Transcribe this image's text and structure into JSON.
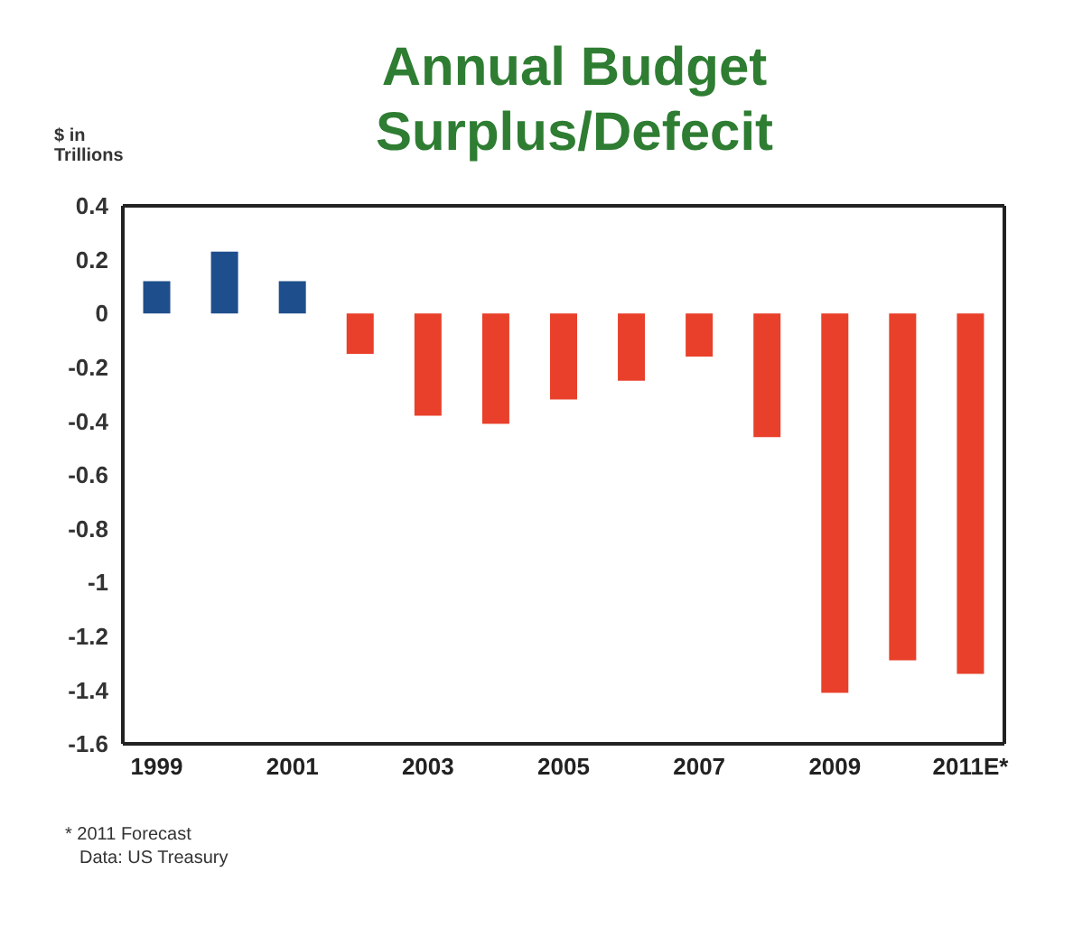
{
  "chart_data": {
    "type": "bar",
    "title": "Annual Budget Surplus/Defecit",
    "ylabel": "$ in Trillions",
    "categories": [
      "1999",
      null,
      "2001",
      null,
      "2003",
      null,
      "2005",
      null,
      "2007",
      null,
      "2009",
      null,
      "2011E*"
    ],
    "values": [
      0.12,
      0.23,
      0.12,
      -0.15,
      -0.38,
      -0.41,
      -0.32,
      -0.25,
      -0.16,
      -0.46,
      -1.41,
      -1.29,
      -1.34
    ],
    "colors": [
      "#1f4e8c",
      "#1f4e8c",
      "#1f4e8c",
      "#e8402a",
      "#e8402a",
      "#e8402a",
      "#e8402a",
      "#e8402a",
      "#e8402a",
      "#e8402a",
      "#e8402a",
      "#e8402a",
      "#e8402a"
    ],
    "ylim": [
      -1.6,
      0.4
    ],
    "yticks": [
      0.4,
      0.2,
      0,
      -0.2,
      -0.4,
      -0.6,
      -0.8,
      -1,
      -1.2,
      -1.4,
      -1.6
    ],
    "grid": false,
    "annotations": [
      "* 2011 Forecast",
      "Data: US Treasury"
    ]
  }
}
